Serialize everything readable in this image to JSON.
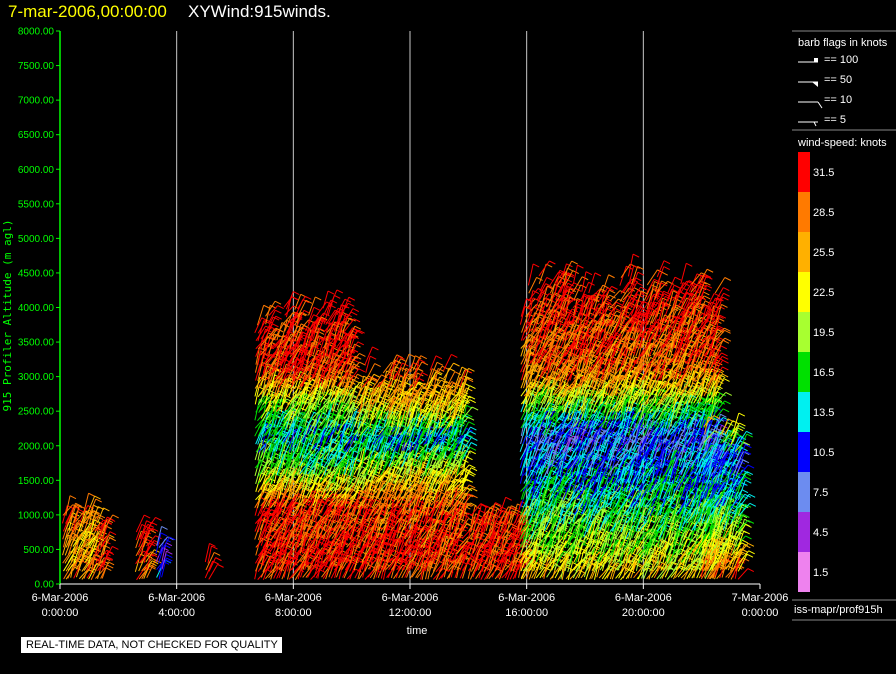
{
  "header": {
    "date": "7-mar-2006,00:00:00",
    "title": "XYWind:915winds."
  },
  "notice": "REAL-TIME DATA, NOT CHECKED FOR QUALITY",
  "footer_label": "iss-mapr/prof915h",
  "legend": {
    "barb_title": "barb flags in knots",
    "barb_items": [
      "== 100",
      "== 50",
      "== 10",
      "== 5"
    ],
    "speed_title": "wind-speed: knots",
    "speed_bins": [
      {
        "label": "31.5",
        "color": "#ff0000"
      },
      {
        "label": "28.5",
        "color": "#ff7a00"
      },
      {
        "label": "25.5",
        "color": "#ffb000"
      },
      {
        "label": "22.5",
        "color": "#ffff00"
      },
      {
        "label": "19.5",
        "color": "#a8ff30"
      },
      {
        "label": "16.5",
        "color": "#00e000"
      },
      {
        "label": "13.5",
        "color": "#00f0f0"
      },
      {
        "label": "10.5",
        "color": "#0000ff"
      },
      {
        "label": "7.5",
        "color": "#6c8cf0"
      },
      {
        "label": "4.5",
        "color": "#a028e0"
      },
      {
        "label": "1.5",
        "color": "#ee82ee"
      }
    ]
  },
  "chart_data": {
    "type": "scatter",
    "title": "XYWind:915winds.",
    "xlabel": "time",
    "ylabel": "915 Profiler Altitude (m agl)",
    "ylim": [
      0,
      8000
    ],
    "xlim": [
      0,
      24
    ],
    "yticks": [
      "0.00",
      "500.00",
      "1000.00",
      "1500.00",
      "2000.00",
      "2500.00",
      "3000.00",
      "3500.00",
      "4000.00",
      "4500.00",
      "5000.00",
      "5500.00",
      "6000.00",
      "6500.00",
      "7000.00",
      "7500.00",
      "8000.00"
    ],
    "xticks": [
      {
        "hour": 0,
        "date": "6-Mar-2006",
        "time": "0:00:00"
      },
      {
        "hour": 4,
        "date": "6-Mar-2006",
        "time": "4:00:00"
      },
      {
        "hour": 8,
        "date": "6-Mar-2006",
        "time": "8:00:00"
      },
      {
        "hour": 12,
        "date": "6-Mar-2006",
        "time": "12:00:00"
      },
      {
        "hour": 16,
        "date": "6-Mar-2006",
        "time": "16:00:00"
      },
      {
        "hour": 20,
        "date": "6-Mar-2006",
        "time": "20:00:00"
      },
      {
        "hour": 24,
        "date": "7-Mar-2006",
        "time": "0:00:00"
      }
    ],
    "grid": true,
    "colors": {
      "axis": "#00ff00",
      "grid": "#c8c8c8"
    },
    "wind_regions": [
      {
        "t_start": 0.1,
        "t_end": 1.1,
        "alt_top": 1100,
        "levels": [
          {
            "alt": 0,
            "speed": 27
          },
          {
            "alt": 500,
            "speed": 25
          },
          {
            "alt": 1100,
            "speed": 30
          }
        ]
      },
      {
        "t_start": 1.2,
        "t_end": 1.5,
        "alt_top": 900,
        "levels": [
          {
            "alt": 0,
            "speed": 29
          },
          {
            "alt": 900,
            "speed": 30
          }
        ]
      },
      {
        "t_start": 2.6,
        "t_end": 3.0,
        "alt_top": 800,
        "levels": [
          {
            "alt": 0,
            "speed": 28
          },
          {
            "alt": 800,
            "speed": 30
          }
        ]
      },
      {
        "t_start": 3.3,
        "t_end": 3.5,
        "alt_top": 600,
        "levels": [
          {
            "alt": 0,
            "speed": 10
          },
          {
            "alt": 600,
            "speed": 9
          }
        ]
      },
      {
        "t_start": 5.0,
        "t_end": 5.1,
        "alt_top": 400,
        "levels": [
          {
            "alt": 0,
            "speed": 31
          },
          {
            "alt": 400,
            "speed": 31
          }
        ]
      },
      {
        "t_start": 6.7,
        "t_end": 10.0,
        "alt_top": 4100,
        "levels": [
          {
            "alt": 0,
            "speed": 31
          },
          {
            "alt": 1000,
            "speed": 31
          },
          {
            "alt": 1600,
            "speed": 17
          },
          {
            "alt": 2100,
            "speed": 14
          },
          {
            "alt": 2600,
            "speed": 22
          },
          {
            "alt": 3000,
            "speed": 31
          },
          {
            "alt": 4100,
            "speed": 32
          }
        ]
      },
      {
        "t_start": 10.1,
        "t_end": 13.8,
        "alt_top": 3200,
        "levels": [
          {
            "alt": 0,
            "speed": 31
          },
          {
            "alt": 1000,
            "speed": 30
          },
          {
            "alt": 1500,
            "speed": 22
          },
          {
            "alt": 2000,
            "speed": 13
          },
          {
            "alt": 2500,
            "speed": 24
          },
          {
            "alt": 3200,
            "speed": 32
          }
        ]
      },
      {
        "t_start": 14.0,
        "t_end": 15.8,
        "alt_top": 1000,
        "levels": [
          {
            "alt": 0,
            "speed": 31
          },
          {
            "alt": 1000,
            "speed": 31
          }
        ]
      },
      {
        "t_start": 15.8,
        "t_end": 22.5,
        "alt_top": 4500,
        "levels": [
          {
            "alt": 0,
            "speed": 24
          },
          {
            "alt": 800,
            "speed": 17
          },
          {
            "alt": 1500,
            "speed": 13
          },
          {
            "alt": 2000,
            "speed": 9
          },
          {
            "alt": 2500,
            "speed": 19
          },
          {
            "alt": 3000,
            "speed": 29
          },
          {
            "alt": 4500,
            "speed": 32
          }
        ]
      },
      {
        "t_start": 22.0,
        "t_end": 23.3,
        "alt_top": 2300,
        "levels": [
          {
            "alt": 0,
            "speed": 29
          },
          {
            "alt": 1000,
            "speed": 15
          },
          {
            "alt": 1800,
            "speed": 11
          },
          {
            "alt": 2300,
            "speed": 27
          }
        ]
      }
    ]
  }
}
